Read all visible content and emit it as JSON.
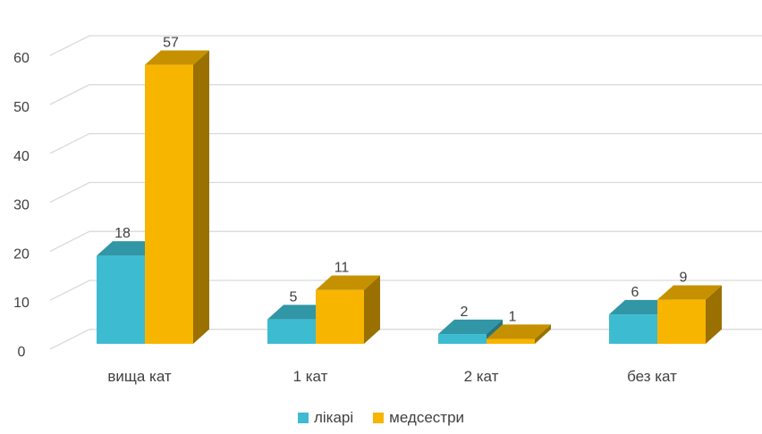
{
  "chart_data": {
    "type": "bar",
    "categories": [
      "вища кат",
      "1 кат",
      "2 кат",
      "без кат"
    ],
    "series": [
      {
        "name": "лікарі",
        "values": [
          18,
          5,
          2,
          6
        ],
        "color": "#3DBBD0"
      },
      {
        "name": "медсестри",
        "values": [
          57,
          11,
          1,
          9
        ],
        "color": "#F8B500"
      }
    ],
    "yticks": [
      0,
      10,
      20,
      30,
      40,
      50,
      60
    ],
    "ylim": [
      0,
      60
    ],
    "grid": true,
    "legend_position": "bottom",
    "three_d": true
  }
}
